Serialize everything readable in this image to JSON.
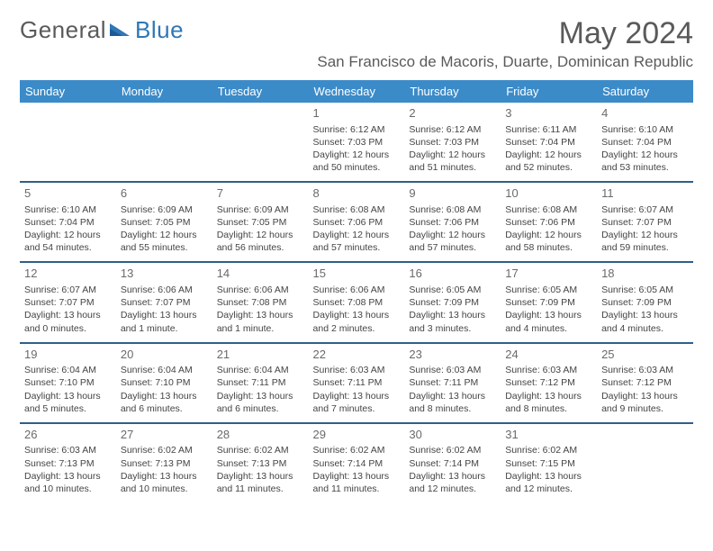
{
  "brand": {
    "part1": "General",
    "part2": "Blue"
  },
  "colors": {
    "header_bg": "#3b8bc9",
    "row_border": "#2f5f8a",
    "text": "#444444",
    "title_text": "#5a5a5a",
    "brand_blue": "#2f77b5"
  },
  "title": {
    "month_year": "May 2024",
    "location": "San Francisco de Macoris, Duarte, Dominican Republic"
  },
  "weekdays": [
    "Sunday",
    "Monday",
    "Tuesday",
    "Wednesday",
    "Thursday",
    "Friday",
    "Saturday"
  ],
  "weeks": [
    [
      null,
      null,
      null,
      {
        "n": "1",
        "sr": "6:12 AM",
        "ss": "7:03 PM",
        "dl1": "Daylight: 12 hours",
        "dl2": "and 50 minutes."
      },
      {
        "n": "2",
        "sr": "6:12 AM",
        "ss": "7:03 PM",
        "dl1": "Daylight: 12 hours",
        "dl2": "and 51 minutes."
      },
      {
        "n": "3",
        "sr": "6:11 AM",
        "ss": "7:04 PM",
        "dl1": "Daylight: 12 hours",
        "dl2": "and 52 minutes."
      },
      {
        "n": "4",
        "sr": "6:10 AM",
        "ss": "7:04 PM",
        "dl1": "Daylight: 12 hours",
        "dl2": "and 53 minutes."
      }
    ],
    [
      {
        "n": "5",
        "sr": "6:10 AM",
        "ss": "7:04 PM",
        "dl1": "Daylight: 12 hours",
        "dl2": "and 54 minutes."
      },
      {
        "n": "6",
        "sr": "6:09 AM",
        "ss": "7:05 PM",
        "dl1": "Daylight: 12 hours",
        "dl2": "and 55 minutes."
      },
      {
        "n": "7",
        "sr": "6:09 AM",
        "ss": "7:05 PM",
        "dl1": "Daylight: 12 hours",
        "dl2": "and 56 minutes."
      },
      {
        "n": "8",
        "sr": "6:08 AM",
        "ss": "7:06 PM",
        "dl1": "Daylight: 12 hours",
        "dl2": "and 57 minutes."
      },
      {
        "n": "9",
        "sr": "6:08 AM",
        "ss": "7:06 PM",
        "dl1": "Daylight: 12 hours",
        "dl2": "and 57 minutes."
      },
      {
        "n": "10",
        "sr": "6:08 AM",
        "ss": "7:06 PM",
        "dl1": "Daylight: 12 hours",
        "dl2": "and 58 minutes."
      },
      {
        "n": "11",
        "sr": "6:07 AM",
        "ss": "7:07 PM",
        "dl1": "Daylight: 12 hours",
        "dl2": "and 59 minutes."
      }
    ],
    [
      {
        "n": "12",
        "sr": "6:07 AM",
        "ss": "7:07 PM",
        "dl1": "Daylight: 13 hours",
        "dl2": "and 0 minutes."
      },
      {
        "n": "13",
        "sr": "6:06 AM",
        "ss": "7:07 PM",
        "dl1": "Daylight: 13 hours",
        "dl2": "and 1 minute."
      },
      {
        "n": "14",
        "sr": "6:06 AM",
        "ss": "7:08 PM",
        "dl1": "Daylight: 13 hours",
        "dl2": "and 1 minute."
      },
      {
        "n": "15",
        "sr": "6:06 AM",
        "ss": "7:08 PM",
        "dl1": "Daylight: 13 hours",
        "dl2": "and 2 minutes."
      },
      {
        "n": "16",
        "sr": "6:05 AM",
        "ss": "7:09 PM",
        "dl1": "Daylight: 13 hours",
        "dl2": "and 3 minutes."
      },
      {
        "n": "17",
        "sr": "6:05 AM",
        "ss": "7:09 PM",
        "dl1": "Daylight: 13 hours",
        "dl2": "and 4 minutes."
      },
      {
        "n": "18",
        "sr": "6:05 AM",
        "ss": "7:09 PM",
        "dl1": "Daylight: 13 hours",
        "dl2": "and 4 minutes."
      }
    ],
    [
      {
        "n": "19",
        "sr": "6:04 AM",
        "ss": "7:10 PM",
        "dl1": "Daylight: 13 hours",
        "dl2": "and 5 minutes."
      },
      {
        "n": "20",
        "sr": "6:04 AM",
        "ss": "7:10 PM",
        "dl1": "Daylight: 13 hours",
        "dl2": "and 6 minutes."
      },
      {
        "n": "21",
        "sr": "6:04 AM",
        "ss": "7:11 PM",
        "dl1": "Daylight: 13 hours",
        "dl2": "and 6 minutes."
      },
      {
        "n": "22",
        "sr": "6:03 AM",
        "ss": "7:11 PM",
        "dl1": "Daylight: 13 hours",
        "dl2": "and 7 minutes."
      },
      {
        "n": "23",
        "sr": "6:03 AM",
        "ss": "7:11 PM",
        "dl1": "Daylight: 13 hours",
        "dl2": "and 8 minutes."
      },
      {
        "n": "24",
        "sr": "6:03 AM",
        "ss": "7:12 PM",
        "dl1": "Daylight: 13 hours",
        "dl2": "and 8 minutes."
      },
      {
        "n": "25",
        "sr": "6:03 AM",
        "ss": "7:12 PM",
        "dl1": "Daylight: 13 hours",
        "dl2": "and 9 minutes."
      }
    ],
    [
      {
        "n": "26",
        "sr": "6:03 AM",
        "ss": "7:13 PM",
        "dl1": "Daylight: 13 hours",
        "dl2": "and 10 minutes."
      },
      {
        "n": "27",
        "sr": "6:02 AM",
        "ss": "7:13 PM",
        "dl1": "Daylight: 13 hours",
        "dl2": "and 10 minutes."
      },
      {
        "n": "28",
        "sr": "6:02 AM",
        "ss": "7:13 PM",
        "dl1": "Daylight: 13 hours",
        "dl2": "and 11 minutes."
      },
      {
        "n": "29",
        "sr": "6:02 AM",
        "ss": "7:14 PM",
        "dl1": "Daylight: 13 hours",
        "dl2": "and 11 minutes."
      },
      {
        "n": "30",
        "sr": "6:02 AM",
        "ss": "7:14 PM",
        "dl1": "Daylight: 13 hours",
        "dl2": "and 12 minutes."
      },
      {
        "n": "31",
        "sr": "6:02 AM",
        "ss": "7:15 PM",
        "dl1": "Daylight: 13 hours",
        "dl2": "and 12 minutes."
      },
      null
    ]
  ],
  "labels": {
    "sunrise_prefix": "Sunrise: ",
    "sunset_prefix": "Sunset: "
  }
}
